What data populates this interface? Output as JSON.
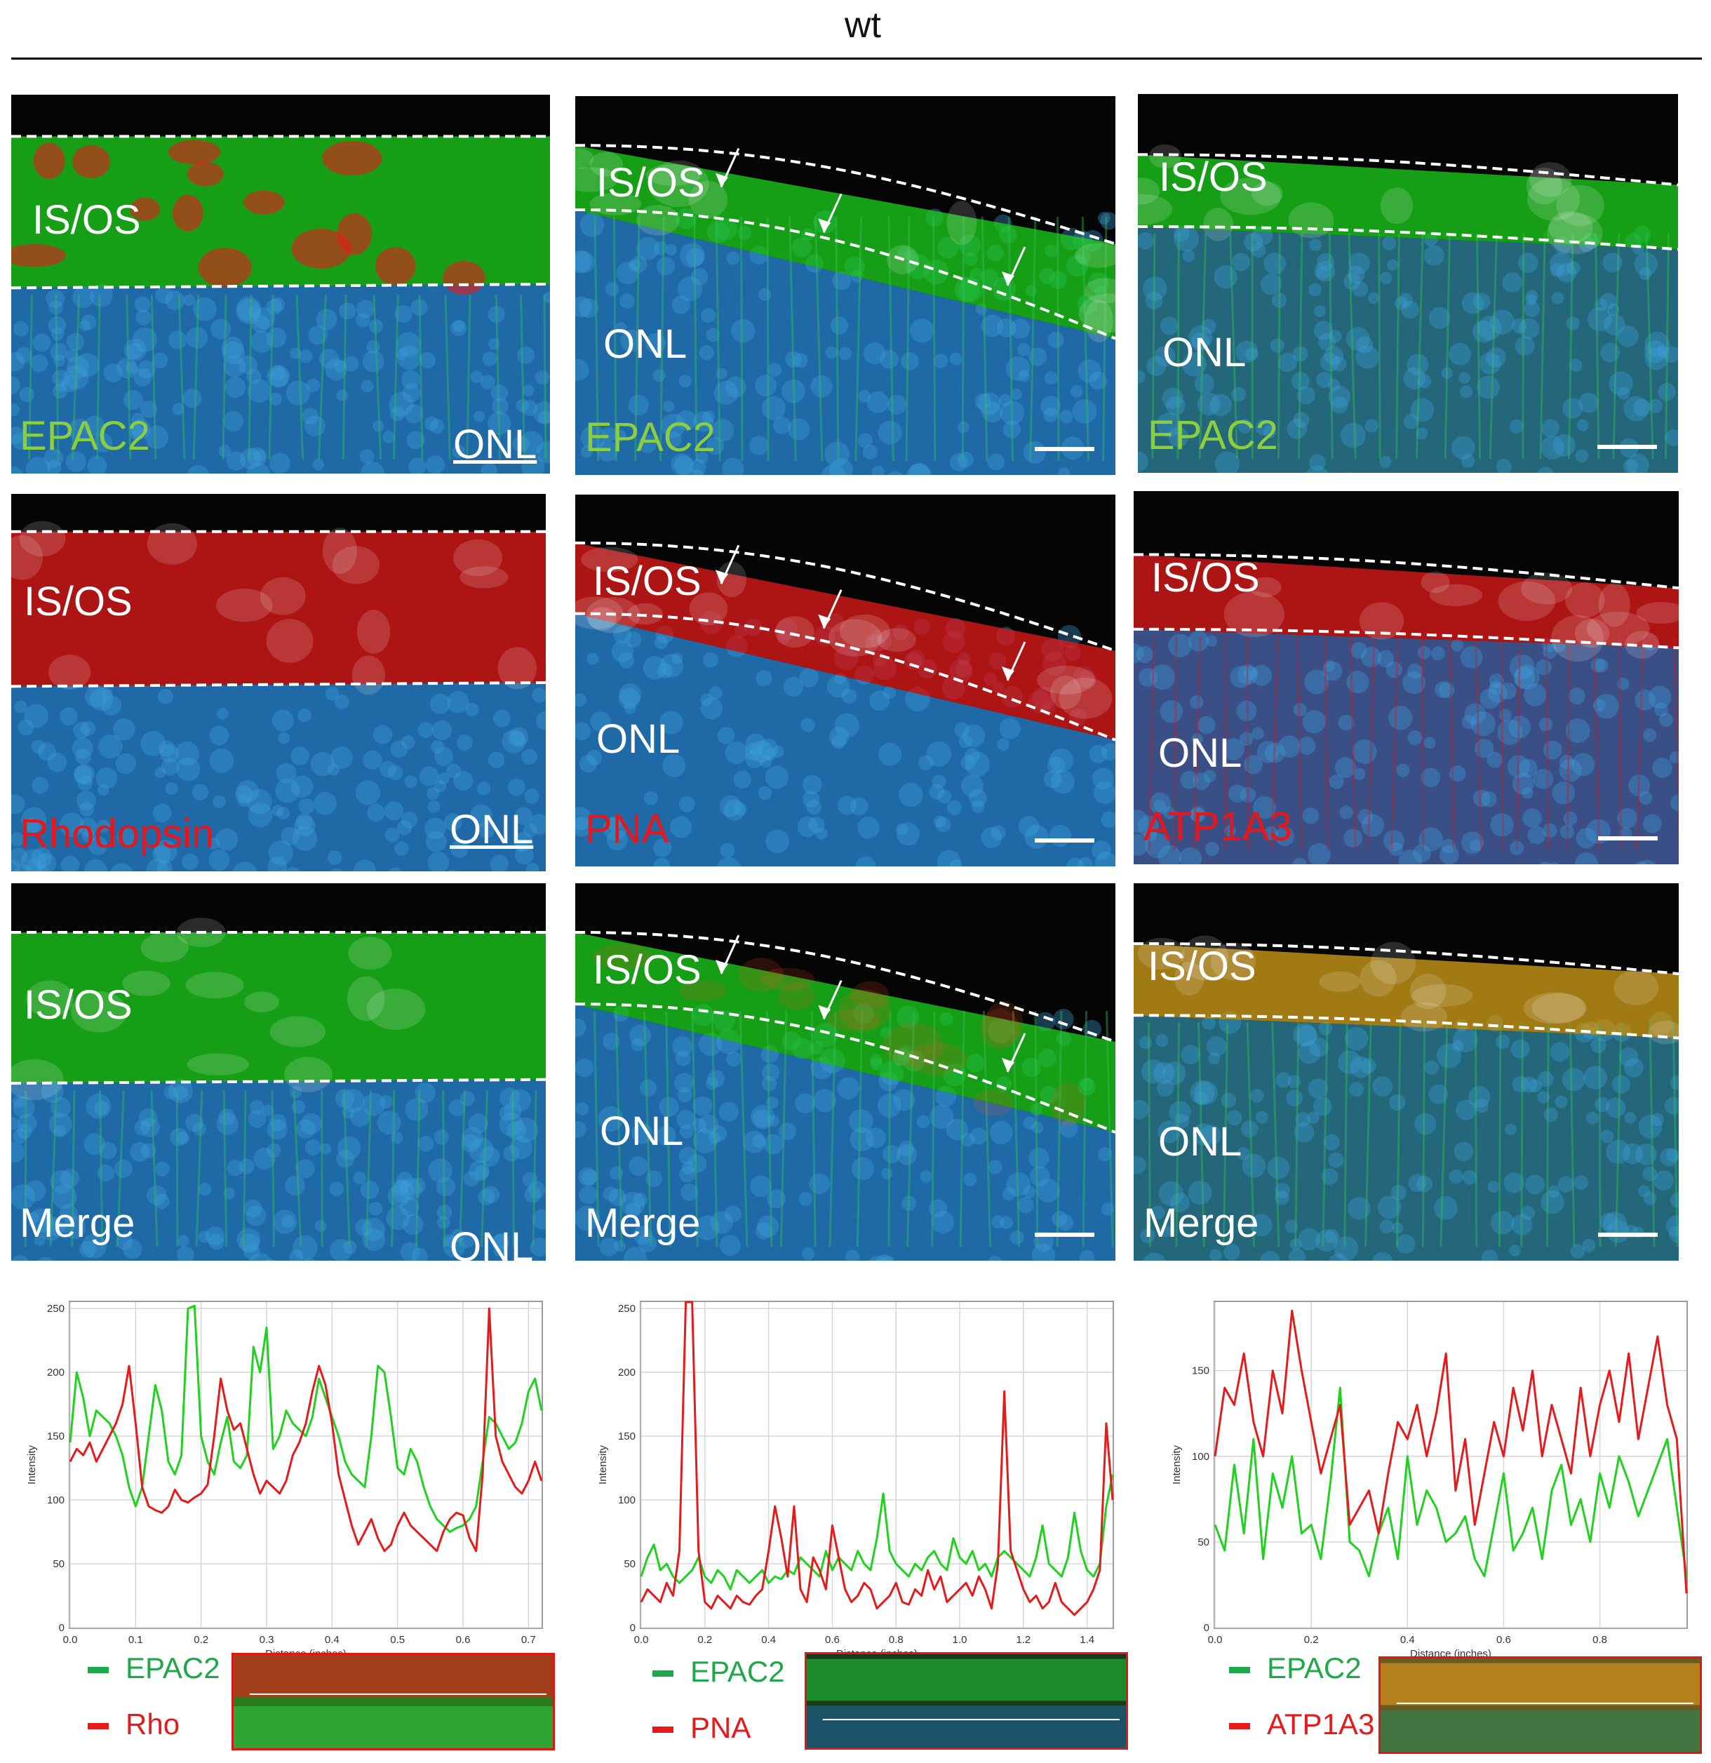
{
  "figure": {
    "title": "wt",
    "colors": {
      "green": "#1ed21e",
      "red": "#e61a1a",
      "blue": "#2f87c0",
      "label_green": "#8ccf3c",
      "label_red": "#e8151b"
    }
  },
  "panels": [
    {
      "layer": "IS/OS",
      "region": "ONL",
      "stain": "EPAC2",
      "stain_color": "green"
    },
    {
      "layer": "IS/OS",
      "region": "ONL",
      "stain": "EPAC2",
      "stain_color": "green"
    },
    {
      "layer": "IS/OS",
      "region": "ONL",
      "stain": "EPAC2",
      "stain_color": "green"
    },
    {
      "layer": "IS/OS",
      "region": "ONL",
      "stain": "Rhodopsin",
      "stain_color": "red"
    },
    {
      "layer": "IS/OS",
      "region": "ONL",
      "stain": "PNA",
      "stain_color": "red"
    },
    {
      "layer": "IS/OS",
      "region": "ONL",
      "stain": "ATP1A3",
      "stain_color": "red"
    },
    {
      "layer": "IS/OS",
      "region": "ONL",
      "stain": "Merge",
      "stain_color": "white"
    },
    {
      "layer": "IS/OS",
      "region": "ONL",
      "stain": "Merge",
      "stain_color": "white"
    },
    {
      "layer": "IS/OS",
      "region": "ONL",
      "stain": "Merge",
      "stain_color": "white"
    }
  ],
  "chart_data": [
    {
      "type": "line",
      "title": "",
      "xlabel": "Distance (inches)",
      "ylabel": "Intensity",
      "xlim": [
        0,
        0.72
      ],
      "ylim": [
        0,
        255
      ],
      "xticks": [
        "0.0",
        "0.1",
        "0.2",
        "0.3",
        "0.4",
        "0.5",
        "0.6",
        "0.7"
      ],
      "yticks": [
        "0",
        "50",
        "100",
        "150",
        "200",
        "250"
      ],
      "grid": true,
      "x": [
        0.0,
        0.01,
        0.02,
        0.03,
        0.04,
        0.05,
        0.06,
        0.07,
        0.08,
        0.09,
        0.1,
        0.11,
        0.12,
        0.13,
        0.14,
        0.15,
        0.16,
        0.17,
        0.18,
        0.19,
        0.2,
        0.21,
        0.22,
        0.23,
        0.24,
        0.25,
        0.26,
        0.27,
        0.28,
        0.29,
        0.3,
        0.31,
        0.32,
        0.33,
        0.34,
        0.35,
        0.36,
        0.37,
        0.38,
        0.39,
        0.4,
        0.41,
        0.42,
        0.43,
        0.44,
        0.45,
        0.46,
        0.47,
        0.48,
        0.49,
        0.5,
        0.51,
        0.52,
        0.53,
        0.54,
        0.55,
        0.56,
        0.57,
        0.58,
        0.59,
        0.6,
        0.61,
        0.62,
        0.63,
        0.64,
        0.65,
        0.66,
        0.67,
        0.68,
        0.69,
        0.7,
        0.71,
        0.72
      ],
      "series": [
        {
          "name": "EPAC2",
          "color": "#1ed21e",
          "values": [
            145,
            200,
            180,
            150,
            170,
            165,
            160,
            150,
            135,
            110,
            95,
            110,
            150,
            190,
            170,
            130,
            120,
            135,
            250,
            252,
            150,
            130,
            120,
            145,
            165,
            130,
            125,
            135,
            220,
            200,
            235,
            140,
            150,
            170,
            160,
            155,
            150,
            165,
            195,
            180,
            165,
            150,
            130,
            120,
            115,
            110,
            150,
            205,
            200,
            165,
            125,
            120,
            140,
            130,
            110,
            95,
            85,
            80,
            75,
            78,
            80,
            85,
            95,
            130,
            165,
            160,
            150,
            140,
            145,
            160,
            185,
            195,
            170
          ]
        },
        {
          "name": "Rho",
          "color": "#e61a1a",
          "values": [
            130,
            140,
            135,
            145,
            130,
            140,
            150,
            160,
            175,
            205,
            160,
            110,
            95,
            92,
            90,
            95,
            108,
            100,
            98,
            102,
            105,
            112,
            150,
            195,
            170,
            155,
            160,
            140,
            120,
            105,
            115,
            110,
            105,
            115,
            135,
            145,
            160,
            185,
            205,
            190,
            160,
            120,
            100,
            80,
            65,
            75,
            85,
            70,
            60,
            65,
            80,
            90,
            80,
            75,
            70,
            65,
            60,
            75,
            85,
            90,
            88,
            70,
            60,
            120,
            250,
            150,
            130,
            120,
            110,
            105,
            115,
            130,
            115
          ]
        }
      ]
    },
    {
      "type": "line",
      "title": "",
      "xlabel": "Distance (inches)",
      "ylabel": "Intensity",
      "xlim": [
        0,
        1.48
      ],
      "ylim": [
        0,
        255
      ],
      "xticks": [
        "0.0",
        "0.2",
        "0.4",
        "0.6",
        "0.8",
        "1.0",
        "1.2",
        "1.4"
      ],
      "yticks": [
        "0",
        "50",
        "100",
        "150",
        "200",
        "250"
      ],
      "grid": true,
      "x": [
        0.0,
        0.02,
        0.04,
        0.06,
        0.08,
        0.1,
        0.12,
        0.14,
        0.16,
        0.18,
        0.2,
        0.22,
        0.24,
        0.26,
        0.28,
        0.3,
        0.32,
        0.34,
        0.36,
        0.38,
        0.4,
        0.42,
        0.44,
        0.46,
        0.48,
        0.5,
        0.52,
        0.54,
        0.56,
        0.58,
        0.6,
        0.62,
        0.64,
        0.66,
        0.68,
        0.7,
        0.72,
        0.74,
        0.76,
        0.78,
        0.8,
        0.82,
        0.84,
        0.86,
        0.88,
        0.9,
        0.92,
        0.94,
        0.96,
        0.98,
        1.0,
        1.02,
        1.04,
        1.06,
        1.08,
        1.1,
        1.12,
        1.14,
        1.16,
        1.18,
        1.2,
        1.22,
        1.24,
        1.26,
        1.28,
        1.3,
        1.32,
        1.34,
        1.36,
        1.38,
        1.4,
        1.42,
        1.44,
        1.46,
        1.48
      ],
      "series": [
        {
          "name": "EPAC2",
          "color": "#1ed21e",
          "values": [
            40,
            55,
            65,
            45,
            50,
            40,
            35,
            40,
            45,
            55,
            40,
            35,
            45,
            40,
            30,
            45,
            40,
            35,
            40,
            45,
            35,
            40,
            38,
            45,
            42,
            55,
            50,
            45,
            40,
            60,
            45,
            55,
            50,
            45,
            60,
            50,
            45,
            70,
            105,
            60,
            50,
            45,
            40,
            50,
            45,
            55,
            60,
            50,
            45,
            70,
            55,
            50,
            60,
            45,
            50,
            40,
            55,
            60,
            55,
            50,
            45,
            40,
            55,
            80,
            50,
            45,
            40,
            55,
            90,
            60,
            45,
            40,
            50,
            95,
            120
          ]
        },
        {
          "name": "PNA",
          "color": "#e61a1a",
          "values": [
            20,
            30,
            25,
            20,
            35,
            25,
            60,
            255,
            255,
            60,
            20,
            15,
            25,
            20,
            15,
            25,
            20,
            18,
            25,
            30,
            60,
            95,
            70,
            40,
            95,
            30,
            20,
            55,
            45,
            30,
            80,
            55,
            30,
            20,
            25,
            35,
            30,
            15,
            20,
            25,
            35,
            20,
            18,
            30,
            25,
            45,
            30,
            40,
            20,
            25,
            30,
            35,
            25,
            40,
            30,
            15,
            50,
            185,
            60,
            45,
            30,
            20,
            25,
            15,
            20,
            35,
            20,
            15,
            10,
            15,
            20,
            30,
            45,
            160,
            100
          ]
        }
      ]
    },
    {
      "type": "line",
      "title": "",
      "xlabel": "Distance (inches)",
      "ylabel": "Intensity",
      "xlim": [
        0,
        0.98
      ],
      "ylim": [
        0,
        190
      ],
      "xticks": [
        "0.0",
        "0.2",
        "0.4",
        "0.6",
        "0.8"
      ],
      "yticks": [
        "0",
        "50",
        "100",
        "150"
      ],
      "grid": true,
      "x": [
        0.0,
        0.02,
        0.04,
        0.06,
        0.08,
        0.1,
        0.12,
        0.14,
        0.16,
        0.18,
        0.2,
        0.22,
        0.24,
        0.26,
        0.28,
        0.3,
        0.32,
        0.34,
        0.36,
        0.38,
        0.4,
        0.42,
        0.44,
        0.46,
        0.48,
        0.5,
        0.52,
        0.54,
        0.56,
        0.58,
        0.6,
        0.62,
        0.64,
        0.66,
        0.68,
        0.7,
        0.72,
        0.74,
        0.76,
        0.78,
        0.8,
        0.82,
        0.84,
        0.86,
        0.88,
        0.9,
        0.92,
        0.94,
        0.96,
        0.98
      ],
      "series": [
        {
          "name": "EPAC2",
          "color": "#1ed21e",
          "values": [
            60,
            45,
            95,
            55,
            110,
            40,
            90,
            70,
            100,
            55,
            60,
            40,
            85,
            140,
            50,
            45,
            30,
            55,
            70,
            40,
            100,
            60,
            80,
            70,
            50,
            55,
            65,
            40,
            30,
            60,
            90,
            45,
            55,
            70,
            40,
            80,
            95,
            60,
            75,
            50,
            90,
            70,
            100,
            85,
            65,
            80,
            95,
            110,
            70,
            30
          ]
        },
        {
          "name": "ATP1A3",
          "color": "#e61a1a",
          "values": [
            100,
            140,
            130,
            160,
            120,
            100,
            150,
            125,
            185,
            150,
            120,
            90,
            110,
            130,
            60,
            70,
            80,
            55,
            90,
            120,
            110,
            130,
            100,
            125,
            160,
            80,
            110,
            60,
            90,
            120,
            100,
            140,
            115,
            150,
            100,
            130,
            110,
            90,
            140,
            100,
            130,
            150,
            120,
            160,
            110,
            140,
            170,
            130,
            110,
            20
          ]
        }
      ]
    }
  ],
  "legends": [
    {
      "items": [
        {
          "label": "EPAC2",
          "color": "#1ea84a"
        },
        {
          "label": "Rho",
          "color": "#e61a1a"
        }
      ]
    },
    {
      "items": [
        {
          "label": "EPAC2",
          "color": "#1ea84a"
        },
        {
          "label": "PNA",
          "color": "#e61a1a"
        }
      ]
    },
    {
      "items": [
        {
          "label": "EPAC2",
          "color": "#1ea84a"
        },
        {
          "label": "ATP1A3",
          "color": "#e61a1a"
        }
      ]
    }
  ]
}
